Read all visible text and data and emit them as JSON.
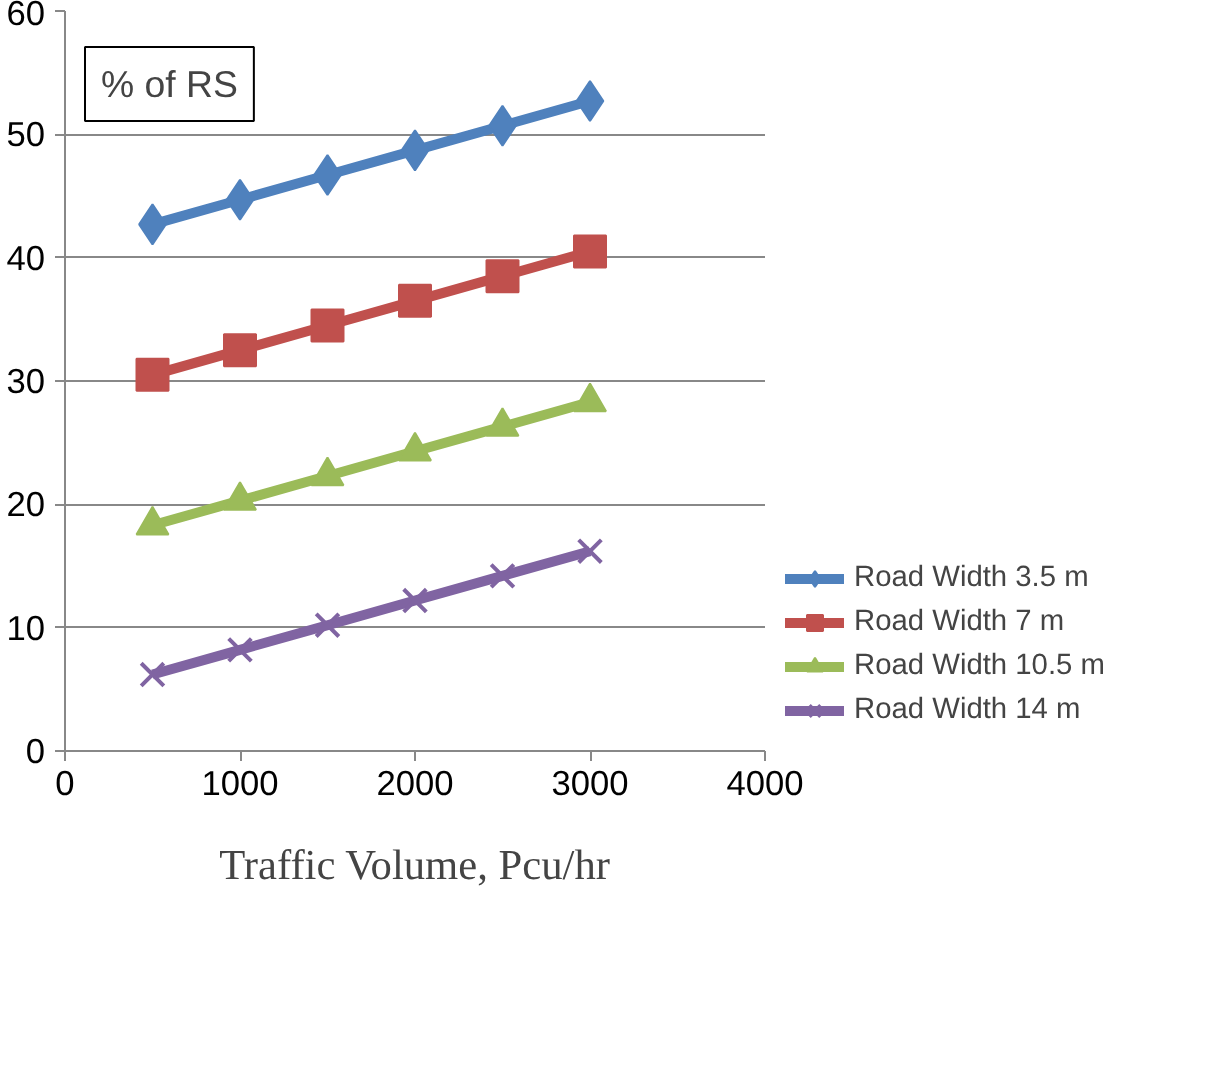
{
  "chart_data": {
    "type": "line",
    "xlabel": "Traffic Volume, Pcu/hr",
    "ylabel": "% of RS",
    "x": [
      500,
      1000,
      1500,
      2000,
      2500,
      3000
    ],
    "series": [
      {
        "name": "Road Width 3.5 m",
        "color": "#4f81bd",
        "marker": "diamond",
        "values": [
          42.7,
          44.7,
          46.7,
          48.7,
          50.7,
          52.7
        ]
      },
      {
        "name": "Road Width 7 m",
        "color": "#c0504d",
        "marker": "square",
        "values": [
          30.5,
          32.5,
          34.5,
          36.5,
          38.5,
          40.5
        ]
      },
      {
        "name": "Road Width 10.5 m",
        "color": "#9bbb59",
        "marker": "triangle",
        "values": [
          18.3,
          20.3,
          22.3,
          24.3,
          26.3,
          28.3
        ]
      },
      {
        "name": "Road Width 14 m",
        "color": "#8064a2",
        "marker": "cross",
        "values": [
          6.2,
          8.2,
          10.2,
          12.2,
          14.2,
          16.2
        ]
      }
    ],
    "xlim": [
      0,
      4000
    ],
    "xticks": [
      0,
      1000,
      2000,
      3000,
      4000
    ],
    "ylim": [
      0,
      60
    ],
    "yticks": [
      0,
      10,
      20,
      30,
      40,
      50,
      60
    ],
    "grid": "y",
    "legend": "right",
    "line_style": "solid"
  }
}
